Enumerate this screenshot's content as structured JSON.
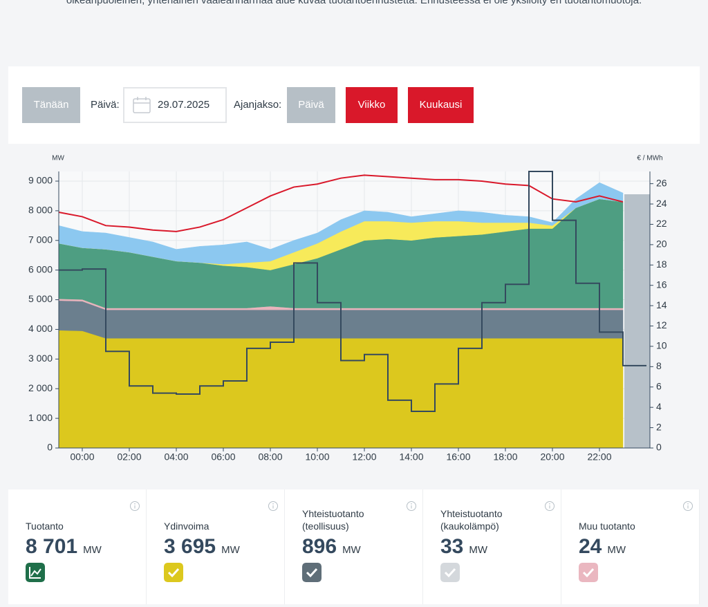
{
  "intro": "oikeanpuoleinen, yhtenäinen vaaleanharmaa alue kuvaa tuotantoennustetta. Ennusteessa ei ole yksilöity eri tuotantomuotoja.",
  "controls": {
    "today": "Tänään",
    "date_label": "Päivä:",
    "date": "29.07.2025",
    "period_label": "Ajanjakso:",
    "periods": [
      "Päivä",
      "Viikko",
      "Kuukausi"
    ]
  },
  "chart_data": {
    "type": "area",
    "y_unit": "MW",
    "y2_unit": "€ / MWh",
    "x": [
      "23:00",
      "00:00",
      "01:00",
      "02:00",
      "03:00",
      "04:00",
      "05:00",
      "06:00",
      "07:00",
      "08:00",
      "09:00",
      "10:00",
      "11:00",
      "12:00",
      "13:00",
      "14:00",
      "15:00",
      "16:00",
      "17:00",
      "18:00",
      "19:00",
      "20:00",
      "21:00",
      "22:00",
      "23:00"
    ],
    "xticks": [
      "00:00",
      "02:00",
      "04:00",
      "06:00",
      "08:00",
      "10:00",
      "12:00",
      "14:00",
      "16:00",
      "18:00",
      "20:00",
      "22:00"
    ],
    "ylim": [
      0,
      9326
    ],
    "yticks": [
      0,
      {
        "value": 1000,
        "label": "1 000"
      },
      {
        "value": 2000,
        "label": "2 000"
      },
      {
        "value": 3000,
        "label": "3 000"
      },
      {
        "value": 4000,
        "label": "4 000"
      },
      {
        "value": 5000,
        "label": "5 000"
      },
      {
        "value": 6000,
        "label": "6 000"
      },
      {
        "value": 7000,
        "label": "7 000"
      },
      {
        "value": 8000,
        "label": "8 000"
      },
      {
        "value": 9000,
        "label": "9 000"
      }
    ],
    "y2lim": [
      0,
      27.2
    ],
    "y2ticks": [
      0,
      2,
      4,
      6,
      8,
      10,
      12,
      14,
      16,
      18,
      20,
      22,
      24,
      26
    ],
    "grid": true,
    "series": [
      {
        "type": "area",
        "color": "#dcc81e",
        "values": [
          3970,
          3950,
          3700,
          3700,
          3700,
          3700,
          3700,
          3700,
          3700,
          3700,
          3700,
          3700,
          3700,
          3700,
          3700,
          3700,
          3700,
          3700,
          3700,
          3700,
          3700,
          3700,
          3700,
          3700,
          3700
        ]
      },
      {
        "type": "area",
        "color": "#6b7f8e",
        "values": [
          1000,
          1000,
          960,
          960,
          960,
          960,
          960,
          960,
          960,
          960,
          960,
          960,
          960,
          960,
          960,
          960,
          960,
          960,
          960,
          960,
          960,
          960,
          960,
          960,
          960
        ]
      },
      {
        "type": "area",
        "color": "#e8b4bc",
        "values": [
          60,
          60,
          60,
          60,
          60,
          60,
          60,
          60,
          60,
          120,
          60,
          60,
          60,
          60,
          60,
          60,
          60,
          60,
          60,
          60,
          60,
          60,
          60,
          60,
          60
        ]
      },
      {
        "type": "area",
        "color": "#4e9e82",
        "values": [
          1870,
          1740,
          1980,
          1880,
          1730,
          1580,
          1530,
          1430,
          1380,
          1220,
          1480,
          1680,
          1980,
          2280,
          2330,
          2280,
          2380,
          2430,
          2480,
          2580,
          2680,
          2680,
          3380,
          3680,
          3580
        ]
      },
      {
        "type": "area",
        "color": "#f7ea5a",
        "values": [
          0,
          0,
          0,
          0,
          0,
          0,
          0,
          50,
          150,
          300,
          400,
          500,
          600,
          650,
          600,
          600,
          550,
          500,
          400,
          300,
          200,
          100,
          0,
          0,
          0
        ]
      },
      {
        "type": "area",
        "color": "#8cc8f0",
        "values": [
          600,
          550,
          550,
          500,
          500,
          400,
          550,
          650,
          700,
          400,
          400,
          350,
          400,
          350,
          300,
          200,
          250,
          350,
          350,
          250,
          200,
          100,
          300,
          550,
          300
        ]
      },
      {
        "type": "line",
        "color": "#d9182a",
        "values": [
          7950,
          7800,
          7500,
          7450,
          7350,
          7300,
          7450,
          7700,
          8100,
          8500,
          8800,
          8900,
          9100,
          9200,
          9150,
          9100,
          9050,
          9050,
          9000,
          8900,
          8850,
          8400,
          8300,
          8500,
          8300
        ]
      },
      {
        "type": "step",
        "axis": "y2",
        "color": "#34495e",
        "values": [
          17.5,
          17.6,
          9.5,
          6.1,
          5.4,
          5.3,
          6.1,
          6.6,
          9.8,
          10.4,
          18.2,
          14.3,
          8.6,
          9.2,
          4.7,
          3.6,
          6.3,
          9.8,
          14.3,
          16.1,
          27.2,
          22.4,
          16.2,
          11.4,
          8.1
        ]
      }
    ]
  },
  "cards": [
    {
      "label": "Tuotanto",
      "value": "8 701",
      "unit": "MW",
      "color": "#1f6f4a"
    },
    {
      "label": "Ydinvoima",
      "value": "3 695",
      "unit": "MW",
      "color": "#dcc81e"
    },
    {
      "label": "Yhteistuotanto (teollisuus)",
      "value": "896",
      "unit": "MW",
      "color": "#5f6e78"
    },
    {
      "label": "Yhteistuotanto (kaukolämpö)",
      "value": "33",
      "unit": "MW",
      "color": "#d4d8dc"
    },
    {
      "label": "Muu tuotanto",
      "value": "24",
      "unit": "MW",
      "color": "#eab7c0"
    }
  ]
}
